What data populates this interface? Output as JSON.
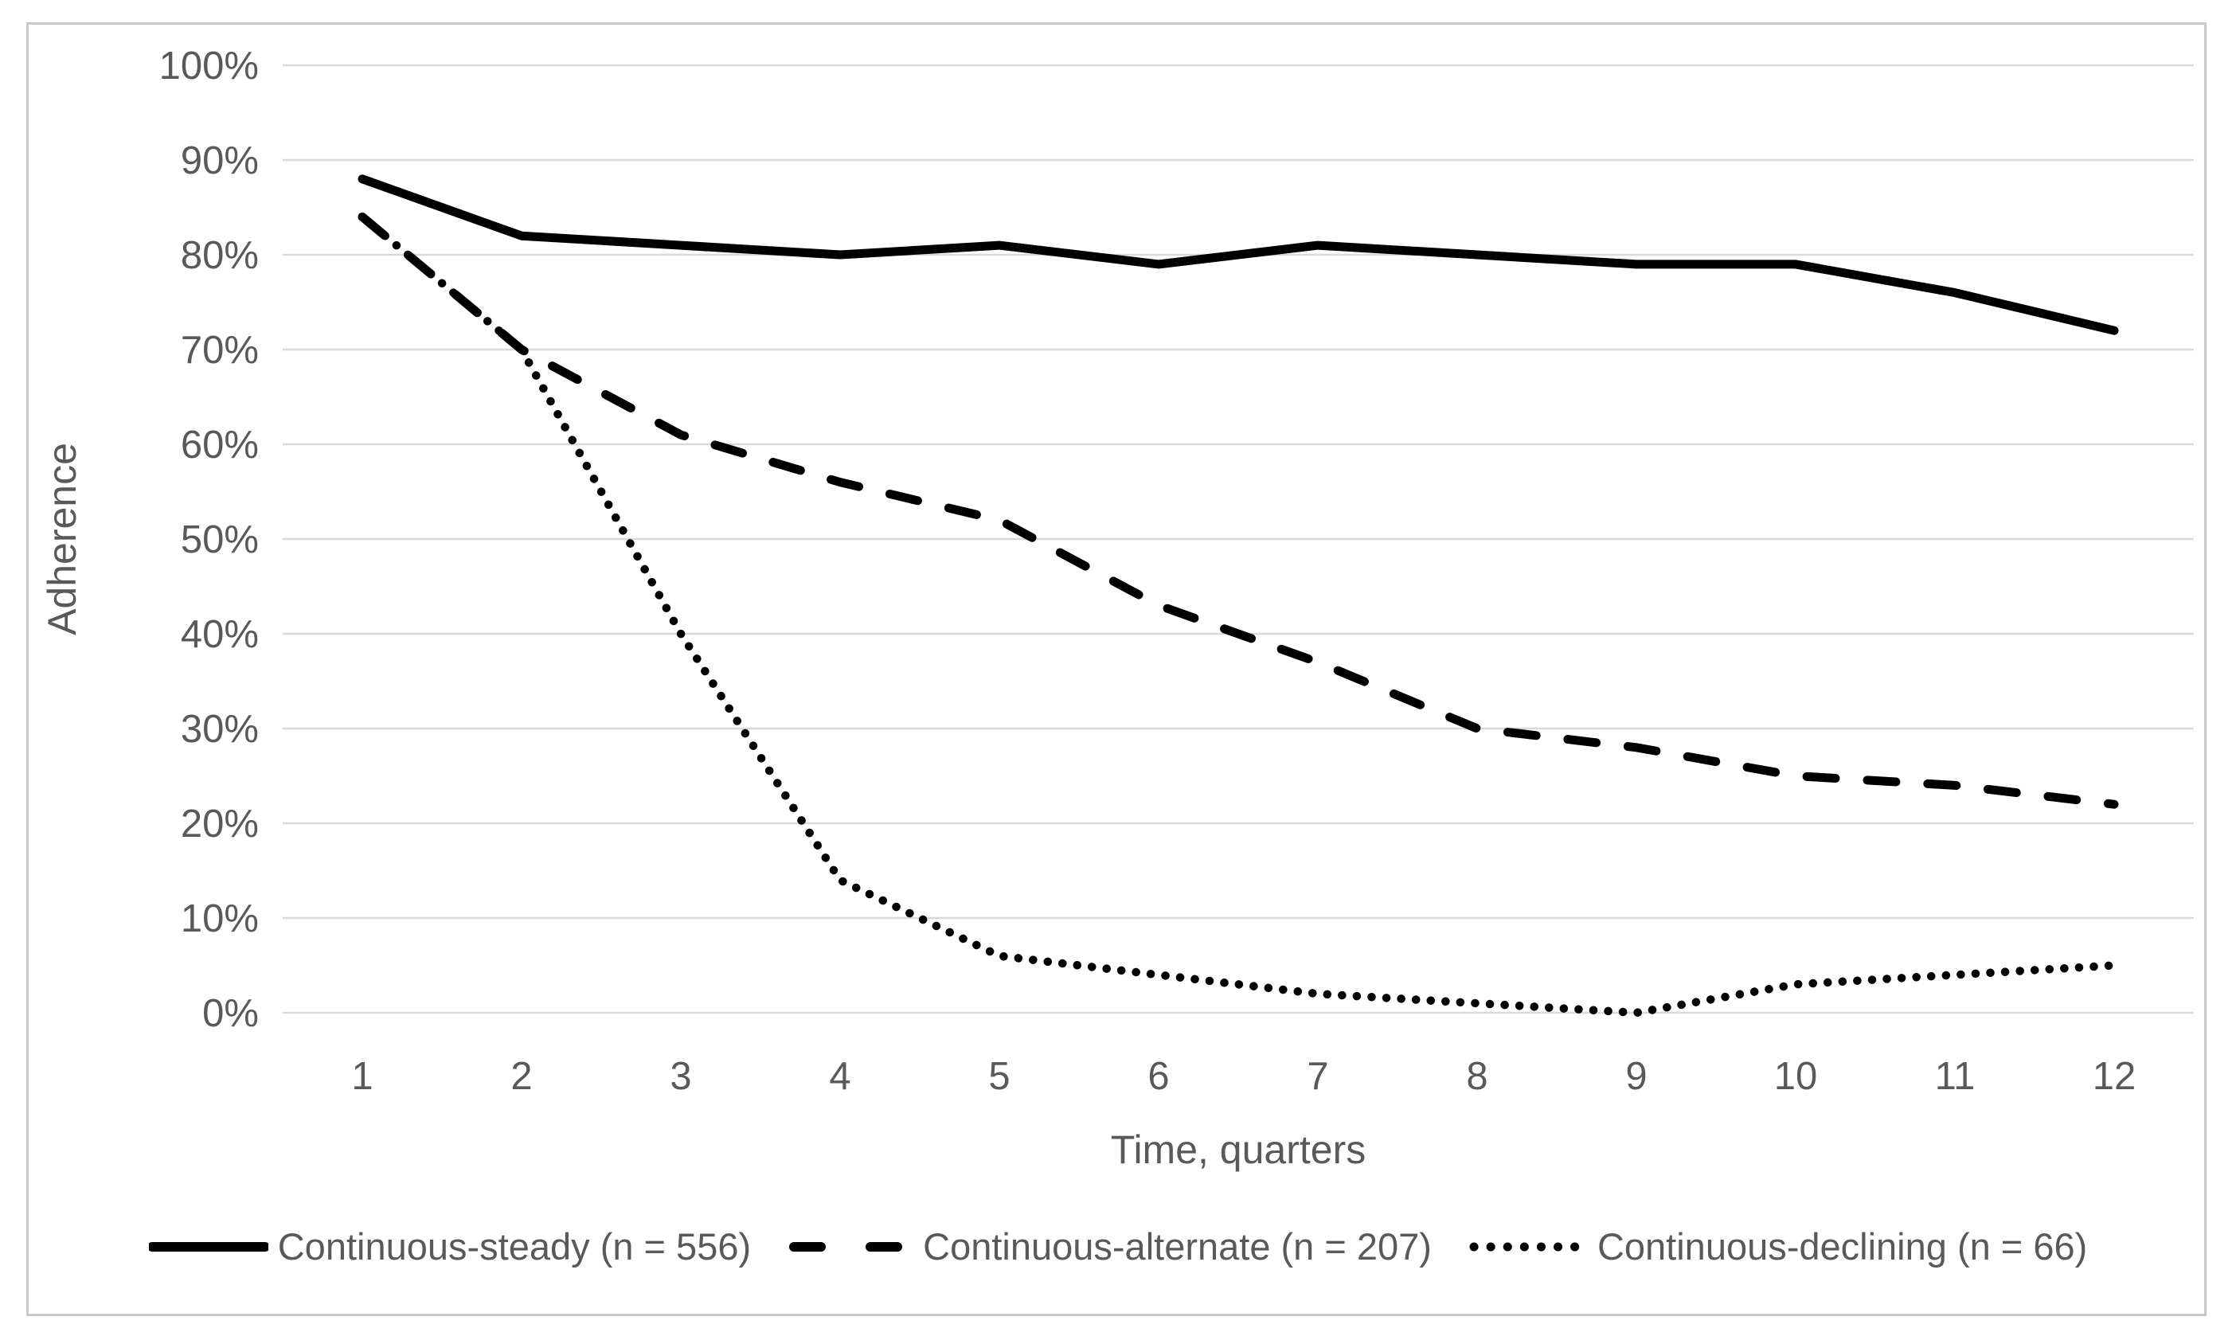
{
  "figure": {
    "background": "#ffffff",
    "border_color": "#c9c9c9"
  },
  "colors": {
    "gridline": "#d9d9d9",
    "axis_text": "#595959",
    "series_line": "#000000"
  },
  "chart_data": {
    "type": "line",
    "title": "",
    "xlabel": "Time, quarters",
    "ylabel": "Adherence",
    "x": [
      1,
      2,
      3,
      4,
      5,
      6,
      7,
      8,
      9,
      10,
      11,
      12
    ],
    "x_tick_labels": [
      "1",
      "2",
      "3",
      "4",
      "5",
      "6",
      "7",
      "8",
      "9",
      "10",
      "11",
      "12"
    ],
    "ylim": [
      0,
      100
    ],
    "y_tick_step": 10,
    "y_tick_labels": [
      "0%",
      "10%",
      "20%",
      "30%",
      "40%",
      "50%",
      "60%",
      "70%",
      "80%",
      "90%",
      "100%"
    ],
    "grid": true,
    "legend_position": "bottom",
    "series": [
      {
        "name": "Continuous-steady (n = 556)",
        "style": "solid",
        "color": "#000000",
        "values": [
          88,
          82,
          81,
          80,
          81,
          79,
          81,
          80,
          79,
          79,
          76,
          72
        ]
      },
      {
        "name": "Continuous-alternate (n = 207)",
        "style": "dashed",
        "color": "#000000",
        "values": [
          84,
          70,
          61,
          56,
          52,
          43,
          37,
          30,
          28,
          25,
          24,
          22
        ]
      },
      {
        "name": "Continuous-declining (n = 66)",
        "style": "dotted",
        "color": "#000000",
        "values": [
          84,
          70,
          40,
          14,
          6,
          4,
          2,
          1,
          0,
          3,
          4,
          5
        ]
      }
    ]
  }
}
